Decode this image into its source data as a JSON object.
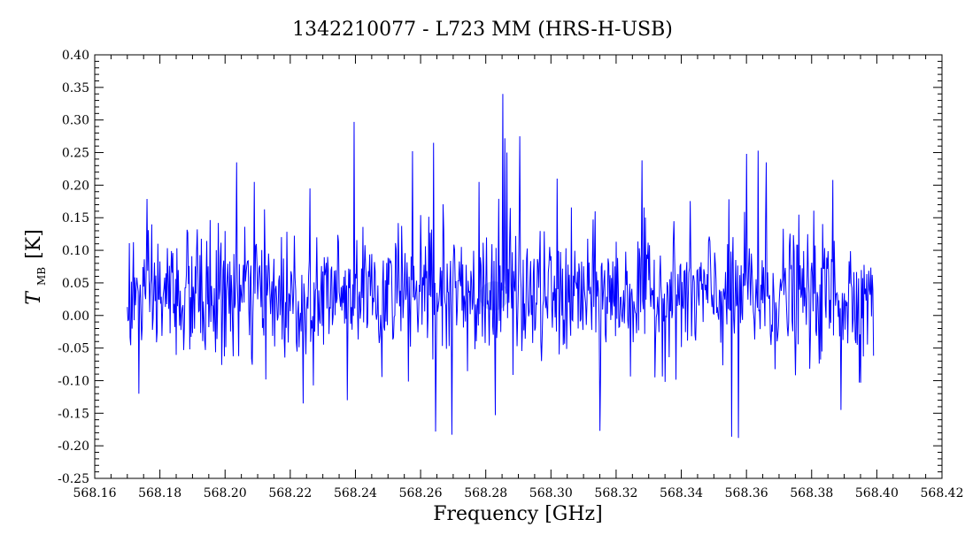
{
  "chart_data": {
    "type": "line",
    "title": "1342210077 - L723 MM (HRS-H-USB)",
    "xlabel": "Frequency [GHz]",
    "ylabel": {
      "symbol": "T",
      "subscript": "MB",
      "unit": "[K]"
    },
    "xlim": [
      568.16,
      568.42
    ],
    "ylim": [
      -0.25,
      0.4
    ],
    "x_ticks": [
      "568.16",
      "568.18",
      "568.20",
      "568.22",
      "568.24",
      "568.26",
      "568.28",
      "568.30",
      "568.32",
      "568.34",
      "568.36",
      "568.38",
      "568.40",
      "568.42"
    ],
    "y_ticks": [
      "-0.25",
      "-0.20",
      "-0.15",
      "-0.10",
      "-0.05",
      "0.00",
      "0.05",
      "0.10",
      "0.15",
      "0.20",
      "0.25",
      "0.30",
      "0.35",
      "0.40"
    ],
    "series": [
      {
        "color": "#0000ff",
        "x_start": 568.17,
        "x_end": 568.399,
        "n_points": 1100,
        "noise_mean": 0.03,
        "noise_rms": 0.05,
        "peaks": [
          {
            "x": 568.2035,
            "y": 0.235
          },
          {
            "x": 568.209,
            "y": 0.205
          },
          {
            "x": 568.226,
            "y": 0.195
          },
          {
            "x": 568.2395,
            "y": 0.297
          },
          {
            "x": 568.2575,
            "y": 0.252
          },
          {
            "x": 568.264,
            "y": 0.265
          },
          {
            "x": 568.278,
            "y": 0.205
          },
          {
            "x": 568.2853,
            "y": 0.34
          },
          {
            "x": 568.2858,
            "y": 0.272
          },
          {
            "x": 568.2865,
            "y": 0.25
          },
          {
            "x": 568.2905,
            "y": 0.275
          },
          {
            "x": 568.302,
            "y": 0.21
          },
          {
            "x": 568.328,
            "y": 0.238
          },
          {
            "x": 568.36,
            "y": 0.248
          },
          {
            "x": 568.3635,
            "y": 0.253
          },
          {
            "x": 568.366,
            "y": 0.235
          },
          {
            "x": 568.3865,
            "y": 0.208
          }
        ],
        "troughs": [
          {
            "x": 568.1735,
            "y": -0.12
          },
          {
            "x": 568.224,
            "y": -0.135
          },
          {
            "x": 568.2375,
            "y": -0.13
          },
          {
            "x": 568.2645,
            "y": -0.178
          },
          {
            "x": 568.2695,
            "y": -0.183
          },
          {
            "x": 568.283,
            "y": -0.153
          },
          {
            "x": 568.315,
            "y": -0.177
          },
          {
            "x": 568.3555,
            "y": -0.186
          },
          {
            "x": 568.3575,
            "y": -0.188
          },
          {
            "x": 568.389,
            "y": -0.145
          }
        ]
      }
    ],
    "watermark": {
      "shape": "circle",
      "color": "#8fa9e6",
      "x": 568.2825,
      "y": 0.03,
      "radius_data_x": 0.0045
    },
    "grid": false
  }
}
